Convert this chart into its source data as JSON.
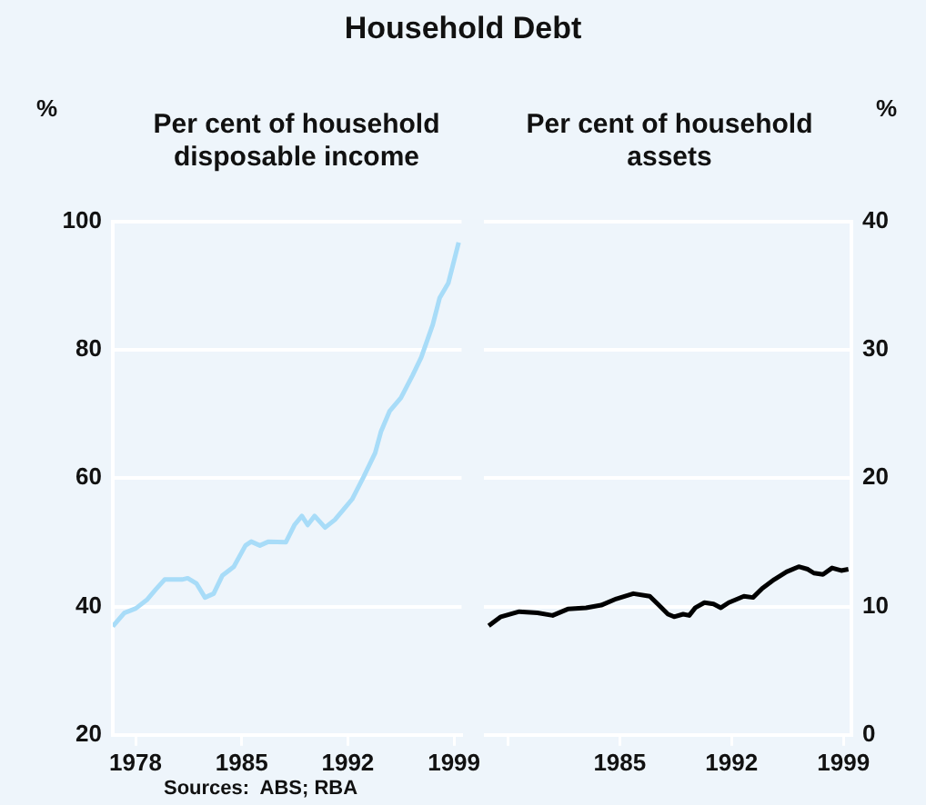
{
  "chart_data": [
    {
      "type": "line",
      "title": "Household Debt",
      "subtitle": "Per cent of household disposable income",
      "ylabel": "%",
      "xlim": [
        1977,
        2000
      ],
      "xticks": [
        {
          "value": 1978.5,
          "label": "1978"
        },
        {
          "value": 1985.5,
          "label": "1985"
        },
        {
          "value": 1992.5,
          "label": "1992"
        },
        {
          "value": 1999.5,
          "label": "1999"
        }
      ],
      "ylim": [
        20,
        100
      ],
      "yticks": [
        20,
        40,
        60,
        80,
        100
      ],
      "grid": "y",
      "annotations": [
        "Sources:  ABS; RBA"
      ],
      "series": [
        {
          "color": "#a8dcf8",
          "x": [
            1977.0,
            1977.76,
            1978.52,
            1979.28,
            1979.85,
            1980.42,
            1981.56,
            1981.94,
            1982.51,
            1983.08,
            1983.65,
            1984.22,
            1984.98,
            1985.75,
            1986.13,
            1986.7,
            1987.27,
            1988.41,
            1988.98,
            1989.47,
            1989.85,
            1990.31,
            1991.0,
            1991.64,
            1992.21,
            1992.78,
            1993.54,
            1994.3,
            1994.68,
            1995.25,
            1996.0,
            1996.77,
            1997.34,
            1998.1,
            1998.56,
            1999.13,
            1999.81
          ],
          "values": [
            36.9,
            39.0,
            39.7,
            41.1,
            42.7,
            44.2,
            44.2,
            44.4,
            43.6,
            41.4,
            42.0,
            44.8,
            46.2,
            49.5,
            50.1,
            49.5,
            50.1,
            50.0,
            52.7,
            54.1,
            52.7,
            54.1,
            52.3,
            53.5,
            55.1,
            56.7,
            60.2,
            63.9,
            67.2,
            70.4,
            72.5,
            76.0,
            78.8,
            83.9,
            88.1,
            90.4,
            96.7
          ]
        }
      ]
    },
    {
      "type": "line",
      "subtitle": "Per cent of household assets",
      "y2label": "%",
      "xlim": [
        1977,
        2000
      ],
      "xticks": [
        {
          "value": 1978.5,
          "label": null
        },
        {
          "value": 1985.5,
          "label": "1985"
        },
        {
          "value": 1992.5,
          "label": "1992"
        },
        {
          "value": 1999.5,
          "label": "1999"
        }
      ],
      "y2lim": [
        0,
        40
      ],
      "y2ticks": [
        0,
        10,
        20,
        30,
        40
      ],
      "grid": "y",
      "series": [
        {
          "color": "#000000",
          "axis": "y2",
          "x": [
            1977.3,
            1978.06,
            1979.21,
            1980.35,
            1981.3,
            1982.25,
            1983.39,
            1984.34,
            1985.29,
            1986.35,
            1987.38,
            1987.95,
            1988.52,
            1988.9,
            1989.47,
            1989.85,
            1990.23,
            1990.8,
            1991.37,
            1991.83,
            1992.32,
            1993.27,
            1993.84,
            1994.41,
            1995.17,
            1995.94,
            1996.7,
            1997.27,
            1997.65,
            1998.22,
            1998.79,
            1999.36,
            1999.81
          ],
          "values": [
            8.5,
            9.2,
            9.6,
            9.5,
            9.3,
            9.8,
            9.9,
            10.1,
            10.6,
            11.0,
            10.8,
            10.1,
            9.4,
            9.2,
            9.4,
            9.3,
            9.9,
            10.3,
            10.2,
            9.9,
            10.3,
            10.8,
            10.7,
            11.4,
            12.1,
            12.7,
            13.1,
            12.9,
            12.6,
            12.5,
            13.0,
            12.8,
            12.9
          ]
        }
      ]
    }
  ]
}
